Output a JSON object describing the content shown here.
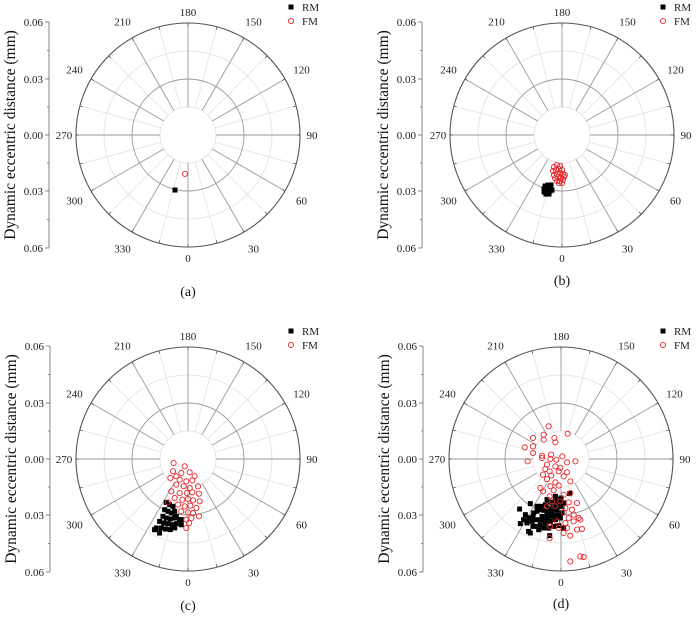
{
  "chart_data": [
    {
      "type": "scatter",
      "subtype": "polar",
      "caption": "(a)",
      "ylabel": "Dynamic eccentric distance (mm)",
      "radial_ticks": [
        "0.06",
        "0.03",
        "0.00",
        "0.03",
        "0.06"
      ],
      "rlim": [
        0,
        0.06
      ],
      "angle_ticks": [
        "0",
        "30",
        "60",
        "90",
        "120",
        "150",
        "180",
        "210",
        "240",
        "270",
        "300",
        "330"
      ],
      "angle_tick_values": [
        0,
        30,
        60,
        90,
        120,
        150,
        180,
        210,
        240,
        270,
        300,
        330
      ],
      "grid": true,
      "legend": "top-right",
      "series": [
        {
          "name": "RM",
          "marker": "filled-square",
          "color": "#000000",
          "points": [
            [
              346.7,
              0.0303
            ]
          ]
        },
        {
          "name": "FM",
          "marker": "open-circle",
          "color": "#e8262b",
          "points": [
            [
              355.6,
              0.0209
            ]
          ]
        }
      ]
    },
    {
      "type": "scatter",
      "subtype": "polar",
      "caption": "(b)",
      "ylabel": "Dynamic eccentric distance (mm)",
      "radial_ticks": [
        "0.06",
        "0.03",
        "0.00",
        "0.03",
        "0.06"
      ],
      "rlim": [
        0,
        0.06
      ],
      "angle_ticks": [
        "0",
        "30",
        "60",
        "90",
        "120",
        "150",
        "180",
        "210",
        "240",
        "270",
        "300",
        "330"
      ],
      "angle_tick_values": [
        0,
        30,
        60,
        90,
        120,
        150,
        180,
        210,
        240,
        270,
        300,
        330
      ],
      "grid": true,
      "legend": "top-right",
      "series": [
        {
          "name": "RM",
          "marker": "filled-square",
          "color": "#000000",
          "points": [
            [
              341.6,
              0.0288
            ],
            [
              344.4,
              0.0278
            ],
            [
              347.6,
              0.0274
            ],
            [
              341.6,
              0.0305
            ],
            [
              344.5,
              0.03
            ],
            [
              347.2,
              0.0291
            ],
            [
              342.5,
              0.032
            ],
            [
              345.3,
              0.0316
            ],
            [
              347.9,
              0.0307
            ],
            [
              344.8,
              0.0328
            ],
            [
              347.6,
              0.0324
            ],
            [
              349.7,
              0.03
            ]
          ]
        },
        {
          "name": "FM",
          "marker": "open-circle",
          "color": "#e8262b",
          "points": [
            [
              346.0,
              0.0177
            ],
            [
              350.5,
              0.0163
            ],
            [
              356.3,
              0.0167
            ],
            [
              346.0,
              0.0199
            ],
            [
              350.3,
              0.019
            ],
            [
              355.0,
              0.0183
            ],
            [
              0,
              0.0188
            ],
            [
              348.7,
              0.0219
            ],
            [
              352.7,
              0.0211
            ],
            [
              357.0,
              0.0204
            ],
            [
              1.5,
              0.0209
            ],
            [
              350.8,
              0.0234
            ],
            [
              354.6,
              0.0226
            ],
            [
              358.7,
              0.023
            ],
            [
              2.7,
              0.0225
            ],
            [
              353.8,
              0.0248
            ],
            [
              357.5,
              0.0247
            ],
            [
              1.3,
              0.0241
            ],
            [
              356.4,
              0.0258
            ],
            [
              0,
              0.0257
            ],
            [
              4.3,
              0.0215
            ]
          ]
        }
      ]
    },
    {
      "type": "scatter",
      "subtype": "polar",
      "caption": "(c)",
      "ylabel": "Dynamic eccentric distance (mm)",
      "radial_ticks": [
        "0.06",
        "0.03",
        "0.00",
        "0.03",
        "0.06"
      ],
      "rlim": [
        0,
        0.06
      ],
      "angle_ticks": [
        "0",
        "30",
        "60",
        "90",
        "120",
        "150",
        "180",
        "210",
        "240",
        "270",
        "300",
        "330"
      ],
      "angle_tick_values": [
        0,
        30,
        60,
        90,
        120,
        150,
        180,
        210,
        240,
        270,
        300,
        330
      ],
      "grid": true,
      "legend": "top-right",
      "series": [
        {
          "name": "RM",
          "marker": "filled-square",
          "color": "#000000",
          "points": [
            [
              333.4,
              0.026
            ],
            [
              338.1,
              0.0264
            ],
            [
              342.4,
              0.0266
            ],
            [
              335.3,
              0.0299
            ],
            [
              339.1,
              0.03
            ],
            [
              342.8,
              0.0303
            ],
            [
              345.7,
              0.0289
            ],
            [
              336.4,
              0.0335
            ],
            [
              339.8,
              0.0337
            ],
            [
              343.6,
              0.0335
            ],
            [
              347.3,
              0.0324
            ],
            [
              352.2,
              0.0328
            ],
            [
              335.6,
              0.0367
            ],
            [
              339.2,
              0.0367
            ],
            [
              342.8,
              0.0363
            ],
            [
              346.6,
              0.0362
            ],
            [
              349.8,
              0.0352
            ],
            [
              354.2,
              0.0354
            ],
            [
              335.3,
              0.0407
            ],
            [
              338.9,
              0.0396
            ],
            [
              342.3,
              0.0394
            ],
            [
              345.9,
              0.039
            ],
            [
              349.1,
              0.0376
            ],
            [
              334.7,
              0.0419
            ],
            [
              339.0,
              0.0425
            ],
            [
              353.7,
              0.0327
            ],
            [
              348.5,
              0.0313
            ]
          ]
        },
        {
          "name": "FM",
          "marker": "open-circle",
          "color": "#e8262b",
          "points": [
            [
              285.6,
              0.008
            ],
            [
              335.6,
              0.0043
            ],
            [
              309.4,
              0.0104
            ],
            [
              334.5,
              0.0083
            ],
            [
              7.1,
              0.0072
            ],
            [
              317.1,
              0.0139
            ],
            [
              338.0,
              0.0119
            ],
            [
              355.7,
              0.012
            ],
            [
              11.5,
              0.0117
            ],
            [
              335.6,
              0.0151
            ],
            [
              351.0,
              0.0148
            ],
            [
              3.3,
              0.0156
            ],
            [
              20.1,
              0.0156
            ],
            [
              332.7,
              0.0195
            ],
            [
              346.2,
              0.0188
            ],
            [
              358.3,
              0.0182
            ],
            [
              7.4,
              0.018
            ],
            [
              17.6,
              0.0195
            ],
            [
              341.1,
              0.0221
            ],
            [
              352.1,
              0.022
            ],
            [
              0,
              0.0214
            ],
            [
              6.9,
              0.0223
            ],
            [
              15.4,
              0.0235
            ],
            [
              335.2,
              0.0256
            ],
            [
              347.6,
              0.025
            ],
            [
              356.0,
              0.0254
            ],
            [
              2.9,
              0.025
            ],
            [
              9.7,
              0.0266
            ],
            [
              352.7,
              0.0283
            ],
            [
              0,
              0.0286
            ],
            [
              5.3,
              0.0291
            ],
            [
              10.9,
              0.0313
            ],
            [
              358.4,
              0.0325
            ],
            [
              3.2,
              0.0317
            ],
            [
              358.6,
              0.037
            ],
            [
              0.9,
              0.0343
            ],
            [
              326.1,
              0.0112
            ],
            [
              21.0,
              0.0099
            ]
          ]
        }
      ]
    },
    {
      "type": "scatter",
      "subtype": "polar",
      "caption": "(d)",
      "ylabel": "Dynamic eccentric distance (mm)",
      "radial_ticks": [
        "0.06",
        "0.03",
        "0.00",
        "0.03",
        "0.06"
      ],
      "rlim": [
        0,
        0.06
      ],
      "angle_ticks": [
        "0",
        "30",
        "60",
        "90",
        "120",
        "150",
        "180",
        "210",
        "240",
        "270",
        "300",
        "330"
      ],
      "angle_tick_values": [
        0,
        30,
        60,
        90,
        120,
        150,
        180,
        210,
        240,
        270,
        300,
        330
      ],
      "grid": true,
      "legend": "top-right",
      "series": [
        {
          "name": "RM",
          "marker": "filled-square",
          "color": "#000000",
          "points": [
            [
              320.4,
              0.0348
            ],
            [
              325.5,
              0.029
            ],
            [
              328.4,
              0.0382
            ],
            [
              327.8,
              0.0409
            ],
            [
              335.9,
              0.0425
            ],
            [
              337.5,
              0.0429
            ],
            [
              334.0,
              0.0342
            ],
            [
              335.4,
              0.0308
            ],
            [
              337.1,
              0.0275
            ],
            [
              341.1,
              0.0259
            ],
            [
              346.2,
              0.0239
            ],
            [
              352.4,
              0.0229
            ],
            [
              359.1,
              0.0218
            ],
            [
              14.0,
              0.0191
            ],
            [
              327.4,
              0.0354
            ],
            [
              335.1,
              0.0368
            ],
            [
              338.4,
              0.035
            ],
            [
              341.7,
              0.0324
            ],
            [
              345.5,
              0.0299
            ],
            [
              350.2,
              0.0285
            ],
            [
              355.5,
              0.0272
            ],
            [
              1.2,
              0.0254
            ],
            [
              339.1,
              0.0386
            ],
            [
              342.5,
              0.0369
            ],
            [
              346.2,
              0.0353
            ],
            [
              350.3,
              0.0339
            ],
            [
              354.7,
              0.0326
            ],
            [
              359.4,
              0.0316
            ],
            [
              342.5,
              0.0397
            ],
            [
              345.9,
              0.0381
            ],
            [
              349.9,
              0.0376
            ],
            [
              353.8,
              0.0363
            ],
            [
              358.0,
              0.0357
            ],
            [
              351.6,
              0.0415
            ],
            [
              333.2,
              0.0324
            ],
            [
              336.2,
              0.0297
            ],
            [
              341.3,
              0.029
            ],
            [
              345.9,
              0.0271
            ],
            [
              351.2,
              0.0257
            ],
            [
              357.1,
              0.0245
            ],
            [
              3.5,
              0.0236
            ],
            [
              331.3,
              0.036
            ],
            [
              342.6,
              0.0341
            ],
            [
              346.7,
              0.0325
            ],
            [
              351.1,
              0.0311
            ],
            [
              355.9,
              0.0299
            ],
            [
              1.1,
              0.0289
            ],
            [
              2.2,
              0.037
            ],
            [
              333.1,
              0.0284
            ],
            [
              341.0,
              0.023
            ],
            [
              351.4,
              0.0202
            ],
            [
              0,
              0.0209
            ],
            [
              337.4,
              0.0391
            ],
            [
              332.0,
              0.0388
            ]
          ]
        },
        {
          "name": "FM",
          "marker": "open-circle",
          "color": "#e8262b",
          "points": [
            [
              200.7,
              0.0187
            ],
            [
              165.3,
              0.014
            ],
            [
              215.5,
              0.016
            ],
            [
              197.6,
              0.0118
            ],
            [
              233.1,
              0.0188
            ],
            [
              221.9,
              0.0139
            ],
            [
              198.8,
              0.0094
            ],
            [
              252.2,
              0.0204
            ],
            [
              245.7,
              0.0165
            ],
            [
              257.9,
              0.0153
            ],
            [
              260.0,
              0.0103
            ],
            [
              246.6,
              0.0058
            ],
            [
              153.4,
              0.0016
            ],
            [
              274.0,
              0.0179
            ],
            [
              267.0,
              0.0102
            ],
            [
              270.0,
              0.0057
            ],
            [
              278.1,
              0.0025
            ],
            [
              60.9,
              0.0037
            ],
            [
              80.8,
              0.0078
            ],
            [
              292.0,
              0.0081
            ],
            [
              322.3,
              0.005
            ],
            [
              355.8,
              0.0048
            ],
            [
              302.5,
              0.01
            ],
            [
              317.4,
              0.009
            ],
            [
              349.3,
              0.0067
            ],
            [
              24.2,
              0.0078
            ],
            [
              311.0,
              0.0128
            ],
            [
              329.9,
              0.0103
            ],
            [
              8.7,
              0.0094
            ],
            [
              325.0,
              0.0131
            ],
            [
              346.4,
              0.0129
            ],
            [
              22.7,
              0.013
            ],
            [
              324.5,
              0.0191
            ],
            [
              338.7,
              0.0157
            ],
            [
              355.0,
              0.0143
            ],
            [
              330.9,
              0.0198
            ],
            [
              346.8,
              0.0172
            ],
            [
              343.1,
              0.0209
            ],
            [
              4.3,
              0.0192
            ],
            [
              15.4,
              0.0189
            ],
            [
              348.0,
              0.0232
            ],
            [
              359.1,
              0.0227
            ],
            [
              10.0,
              0.0236
            ],
            [
              20.0,
              0.0251
            ],
            [
              343.5,
              0.0264
            ],
            [
              353.2,
              0.0255
            ],
            [
              5.1,
              0.0264
            ],
            [
              12.2,
              0.0278
            ],
            [
              2.9,
              0.0286
            ],
            [
              12.8,
              0.0306
            ],
            [
              16.7,
              0.033
            ],
            [
              7.4,
              0.0319
            ],
            [
              356.3,
              0.0335
            ],
            [
              3.9,
              0.0344
            ],
            [
              11.5,
              0.0341
            ],
            [
              17.7,
              0.0341
            ],
            [
              351.0,
              0.0365
            ],
            [
              358.1,
              0.037
            ],
            [
              5.0,
              0.0371
            ],
            [
              12.8,
              0.0388
            ],
            [
              16.7,
              0.0391
            ],
            [
              2.1,
              0.0397
            ],
            [
              6.9,
              0.0414
            ],
            [
              351.8,
              0.0428
            ],
            [
              11.2,
              0.0532
            ],
            [
              13.0,
              0.0539
            ],
            [
              5.2,
              0.0551
            ]
          ]
        }
      ]
    }
  ]
}
